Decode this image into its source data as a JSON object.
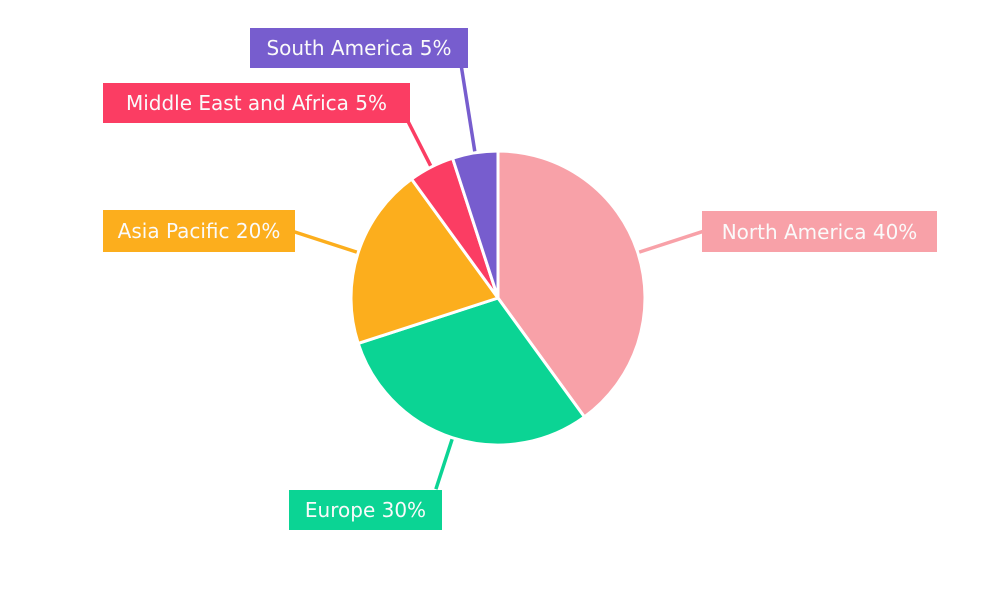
{
  "chart_data": {
    "type": "pie",
    "title": "",
    "categories": [
      "North America",
      "Europe",
      "Asia Pacific",
      "Middle East and Africa",
      "South America"
    ],
    "values": [
      40,
      30,
      20,
      5,
      5
    ],
    "value_unit": "%",
    "display_labels": [
      "North America 40%",
      "Europe 30%",
      "Asia Pacific 20%",
      "Middle East and Africa 5%",
      "South America 5%"
    ],
    "slice_ids": [
      "north-america",
      "europe",
      "asia-pacific",
      "middle-east-and-africa",
      "south-america"
    ],
    "colors": [
      "#F8A1A8",
      "#0BD494",
      "#FCAE1D",
      "#FB3D63",
      "#775DCE"
    ],
    "label_text_color": "#FAFAFA",
    "background": "#FFFFFF",
    "start_angle": "12-oclock",
    "direction": "clockwise",
    "legend_position": "callout-labels",
    "grid": "off"
  }
}
